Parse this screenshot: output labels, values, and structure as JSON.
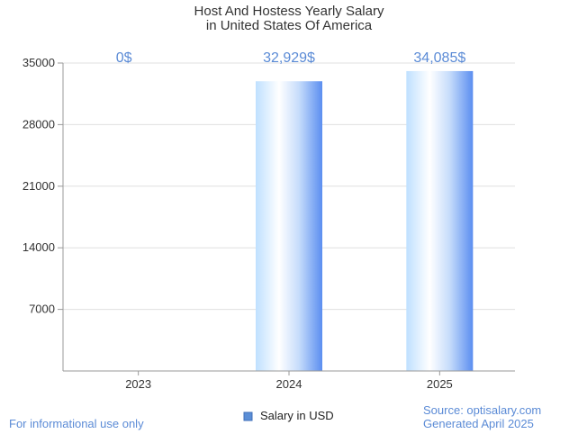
{
  "chart_data": {
    "type": "bar",
    "title": "Host And Hostess Yearly Salary",
    "subtitle": "in United States Of America",
    "categories": [
      "2023",
      "2024",
      "2025"
    ],
    "series": [
      {
        "name": "Salary in USD",
        "values": [
          0,
          32929,
          34085
        ]
      }
    ],
    "data_labels": [
      "0$",
      "32,929$",
      "34,085$"
    ],
    "y_ticks": [
      "7000",
      "14000",
      "21000",
      "28000",
      "35000"
    ],
    "ylim": [
      0,
      35000
    ],
    "grid": true,
    "legend": "bottom-center",
    "colors": {
      "bar_dark": "#5b8ef0",
      "bar_light": "#ffffff",
      "bar_mid": "#bfe0ff",
      "label": "#5b8bd6",
      "legend_swatch": "#5b8ed6"
    }
  },
  "footer": {
    "left": "For informational use only",
    "source": "Source: optisalary.com",
    "generated": "Generated April 2025"
  }
}
